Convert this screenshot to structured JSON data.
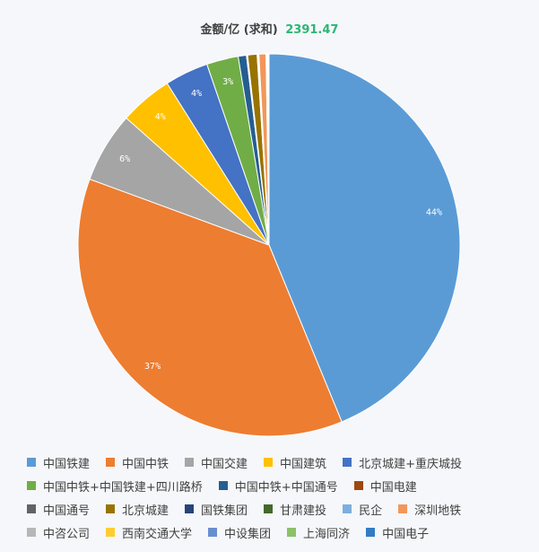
{
  "header": {
    "label": "金额/亿 (求和)",
    "total": "2391.47"
  },
  "chart_data": {
    "type": "pie",
    "title": "金额/亿 (求和)",
    "total": 2391.47,
    "start_angle_deg": 0,
    "direction": "clockwise",
    "slices": [
      {
        "name": "中国铁建",
        "percent": 44,
        "label": "44%",
        "color": "#5b9bd5"
      },
      {
        "name": "中国中铁",
        "percent": 37,
        "label": "37%",
        "color": "#ed7d31"
      },
      {
        "name": "中国交建",
        "percent": 6,
        "label": "6%",
        "color": "#a5a5a5"
      },
      {
        "name": "中国建筑",
        "percent": 4.5,
        "label": "4%",
        "color": "#ffc000"
      },
      {
        "name": "北京城建+重庆城投",
        "percent": 3.7,
        "label": "4%",
        "color": "#4472c4"
      },
      {
        "name": "中国中铁+中国铁建+四川路桥",
        "percent": 2.7,
        "label": "3%",
        "color": "#70ad47"
      },
      {
        "name": "中国中铁+中国通号",
        "percent": 0.7,
        "label": "",
        "color": "#255e91"
      },
      {
        "name": "中国电建",
        "percent": 0.05,
        "label": "",
        "color": "#9e480e"
      },
      {
        "name": "中国通号",
        "percent": 0.05,
        "label": "",
        "color": "#636363"
      },
      {
        "name": "北京城建",
        "percent": 0.8,
        "label": "",
        "color": "#997300"
      },
      {
        "name": "国铁集团",
        "percent": 0.05,
        "label": "",
        "color": "#264478"
      },
      {
        "name": "甘肃建投",
        "percent": 0.05,
        "label": "",
        "color": "#43682b"
      },
      {
        "name": "民企",
        "percent": 0.05,
        "label": "",
        "color": "#7cafdd"
      },
      {
        "name": "深圳地铁",
        "percent": 0.6,
        "label": "",
        "color": "#f1975a"
      },
      {
        "name": "中咨公司",
        "percent": 0.05,
        "label": "",
        "color": "#b7b7b7"
      },
      {
        "name": "西南交通大学",
        "percent": 0.05,
        "label": "",
        "color": "#ffcd33"
      },
      {
        "name": "中设集团",
        "percent": 0.05,
        "label": "",
        "color": "#698ed0"
      },
      {
        "name": "上海同济",
        "percent": 0.05,
        "label": "",
        "color": "#8cc168"
      },
      {
        "name": "中国电子",
        "percent": 0.05,
        "label": "",
        "color": "#327dc2"
      }
    ],
    "legend_position": "bottom"
  }
}
